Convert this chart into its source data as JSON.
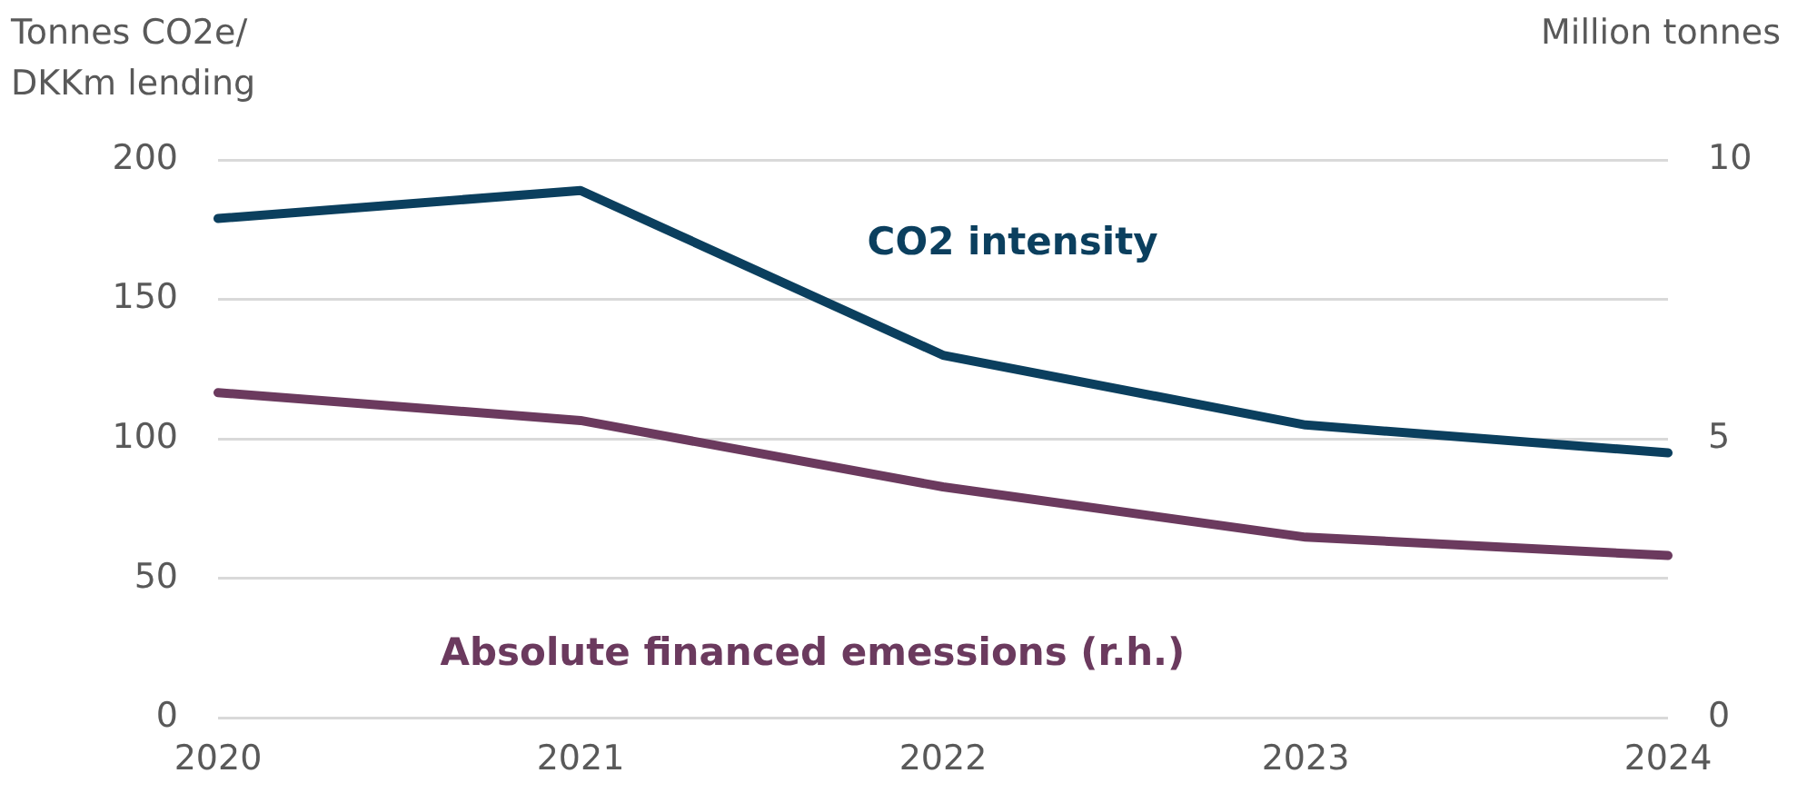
{
  "chart_data": {
    "type": "line",
    "ylabel": "Tonnes CO2e/ DKKm lending",
    "y2label": "Million tonnes",
    "categories": [
      "2020",
      "2021",
      "2022",
      "2023",
      "2024"
    ],
    "series": [
      {
        "name": "CO2 intensity",
        "color": "#0b3f5e",
        "values": [
          179,
          189,
          130,
          105,
          95
        ]
      },
      {
        "name": "Absolute financed emessions (r.h.)",
        "color": "#6b3a5e",
        "axis": "y2",
        "values": [
          5.83,
          5.33,
          4.14,
          3.24,
          2.91
        ]
      }
    ],
    "ylim": [
      0,
      200
    ],
    "yticks": [
      0,
      50,
      100,
      150,
      200
    ],
    "y2lim": [
      0,
      10
    ],
    "y2ticks": [
      0,
      5,
      10
    ],
    "grid": "y",
    "legend": false,
    "marker": "none",
    "line_style": "solid"
  }
}
